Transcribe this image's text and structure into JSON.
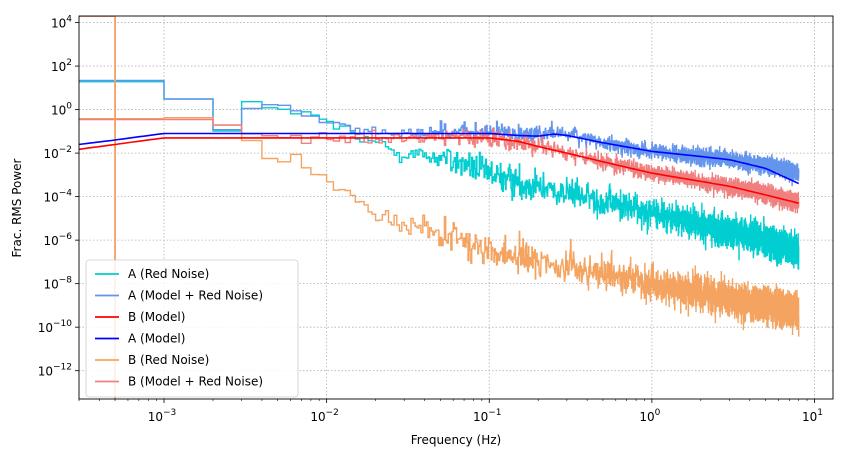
{
  "chart_data": {
    "type": "line",
    "xlabel": "Frequency (Hz)",
    "ylabel": "Frac. RMS Power",
    "xscale": "log",
    "yscale": "log",
    "xlim": [
      0.0003,
      13
    ],
    "ylim": [
      5e-14,
      20000.0
    ],
    "grid": true,
    "legend_position": "lower-left",
    "x_ticks": [
      {
        "value": 0.001,
        "label": "10",
        "exp": "−3"
      },
      {
        "value": 0.01,
        "label": "10",
        "exp": "−2"
      },
      {
        "value": 0.1,
        "label": "10",
        "exp": "−1"
      },
      {
        "value": 1,
        "label": "10",
        "exp": "0"
      },
      {
        "value": 10,
        "label": "10",
        "exp": "1"
      }
    ],
    "y_ticks": [
      {
        "value": 10000.0,
        "label": "10",
        "exp": "4"
      },
      {
        "value": 100.0,
        "label": "10",
        "exp": "2"
      },
      {
        "value": 1,
        "label": "10",
        "exp": "0"
      },
      {
        "value": 0.01,
        "label": "10",
        "exp": "−2"
      },
      {
        "value": 0.0001,
        "label": "10",
        "exp": "−4"
      },
      {
        "value": 1e-06,
        "label": "10",
        "exp": "−6"
      },
      {
        "value": 1e-08,
        "label": "10",
        "exp": "−8"
      },
      {
        "value": 1e-10,
        "label": "10",
        "exp": "−10"
      },
      {
        "value": 1e-12,
        "label": "10",
        "exp": "−12"
      }
    ],
    "series": [
      {
        "name": "A (Red Noise)",
        "color": "#00ced1",
        "style": "steps-noise",
        "legend_order": 0,
        "x": [
          0.0005,
          0.0015,
          0.0025,
          0.0035,
          0.005,
          0.007,
          0.01,
          0.015,
          0.02,
          0.03,
          0.05,
          0.07,
          0.1,
          0.2,
          0.3,
          0.5,
          1,
          2,
          3,
          5,
          8
        ],
        "values": [
          20,
          3,
          0.1,
          1.2,
          2,
          0.5,
          0.3,
          0.05,
          0.03,
          0.01,
          0.006,
          0.003,
          0.001,
          0.0003,
          0.00015,
          6e-05,
          2e-05,
          5e-06,
          2.5e-06,
          1e-06,
          3e-07
        ],
        "noise_dex": 1.0
      },
      {
        "name": "A (Model + Red Noise)",
        "color": "#6495ed",
        "style": "steps-noise",
        "legend_order": 1,
        "x": [
          0.0005,
          0.0015,
          0.0025,
          0.0035,
          0.005,
          0.007,
          0.01,
          0.015,
          0.02,
          0.03,
          0.05,
          0.07,
          0.1,
          0.2,
          0.3,
          0.5,
          1,
          2,
          3,
          5,
          8
        ],
        "values": [
          22,
          3,
          0.12,
          1.2,
          2.2,
          0.6,
          0.35,
          0.12,
          0.1,
          0.09,
          0.09,
          0.09,
          0.09,
          0.08,
          0.08,
          0.03,
          0.012,
          0.007,
          0.005,
          0.003,
          0.0012
        ],
        "noise_dex": 0.55
      },
      {
        "name": "B (Red Noise)",
        "color": "#f4a460",
        "style": "steps-noise",
        "legend_order": 4,
        "x": [
          0.0005,
          0.0015,
          0.0025,
          0.0035,
          0.005,
          0.007,
          0.01,
          0.015,
          0.02,
          0.03,
          0.05,
          0.07,
          0.1,
          0.2,
          0.3,
          0.5,
          1,
          2,
          3,
          5,
          8
        ],
        "values": [
          0.4,
          0.4,
          0.2,
          0.05,
          0.01,
          0.003,
          0.001,
          0.0001,
          2e-05,
          5e-06,
          2e-06,
          1e-06,
          4e-07,
          1e-07,
          6e-08,
          3e-08,
          1e-08,
          4e-09,
          2e-09,
          1e-09,
          5e-10
        ],
        "noise_dex": 1.1
      },
      {
        "name": "B (Model + Red Noise)",
        "color": "#f08080",
        "style": "steps-noise",
        "legend_order": 5,
        "x": [
          0.0005,
          0.0015,
          0.0025,
          0.0035,
          0.005,
          0.007,
          0.01,
          0.015,
          0.02,
          0.03,
          0.05,
          0.07,
          0.1,
          0.2,
          0.3,
          0.5,
          1,
          2,
          3,
          5,
          8
        ],
        "values": [
          0.35,
          0.35,
          0.2,
          0.08,
          0.05,
          0.05,
          0.05,
          0.05,
          0.05,
          0.05,
          0.05,
          0.05,
          0.05,
          0.02,
          0.01,
          0.004,
          0.0012,
          0.0005,
          0.0003,
          0.00015,
          5e-05
        ],
        "noise_dex": 0.55
      },
      {
        "name": "B (Model)",
        "color": "#ff0000",
        "style": "line",
        "legend_order": 2,
        "x": [
          0.0003,
          0.0005,
          0.001,
          0.003,
          0.01,
          0.03,
          0.1,
          0.15,
          0.2,
          0.3,
          0.5,
          1,
          2,
          3,
          5,
          8
        ],
        "values": [
          0.015,
          0.025,
          0.05,
          0.05,
          0.05,
          0.05,
          0.05,
          0.035,
          0.02,
          0.01,
          0.004,
          0.0012,
          0.0005,
          0.0003,
          0.00012,
          5e-05
        ]
      },
      {
        "name": "A (Model)",
        "color": "#0000ff",
        "style": "line",
        "legend_order": 3,
        "x": [
          0.0003,
          0.0005,
          0.001,
          0.003,
          0.01,
          0.03,
          0.1,
          0.15,
          0.2,
          0.25,
          0.3,
          0.5,
          1,
          2,
          3,
          5,
          8
        ],
        "values": [
          0.025,
          0.04,
          0.08,
          0.08,
          0.08,
          0.08,
          0.08,
          0.065,
          0.06,
          0.075,
          0.065,
          0.03,
          0.012,
          0.007,
          0.005,
          0.002,
          0.0004
        ]
      },
      {
        "name": "B (Model + Red Noise)",
        "color": "#f08080",
        "style": "first-bin",
        "x": [
          0.0003,
          0.0005
        ],
        "values": [
          20000,
          20000
        ],
        "drop_to": 5e-14
      },
      {
        "name": "B (Red Noise)",
        "color": "#f4a460",
        "style": "first-bin",
        "x": [
          0.0003,
          0.0005
        ],
        "values": [
          20000,
          20000
        ],
        "drop_to": 5e-14
      }
    ]
  }
}
